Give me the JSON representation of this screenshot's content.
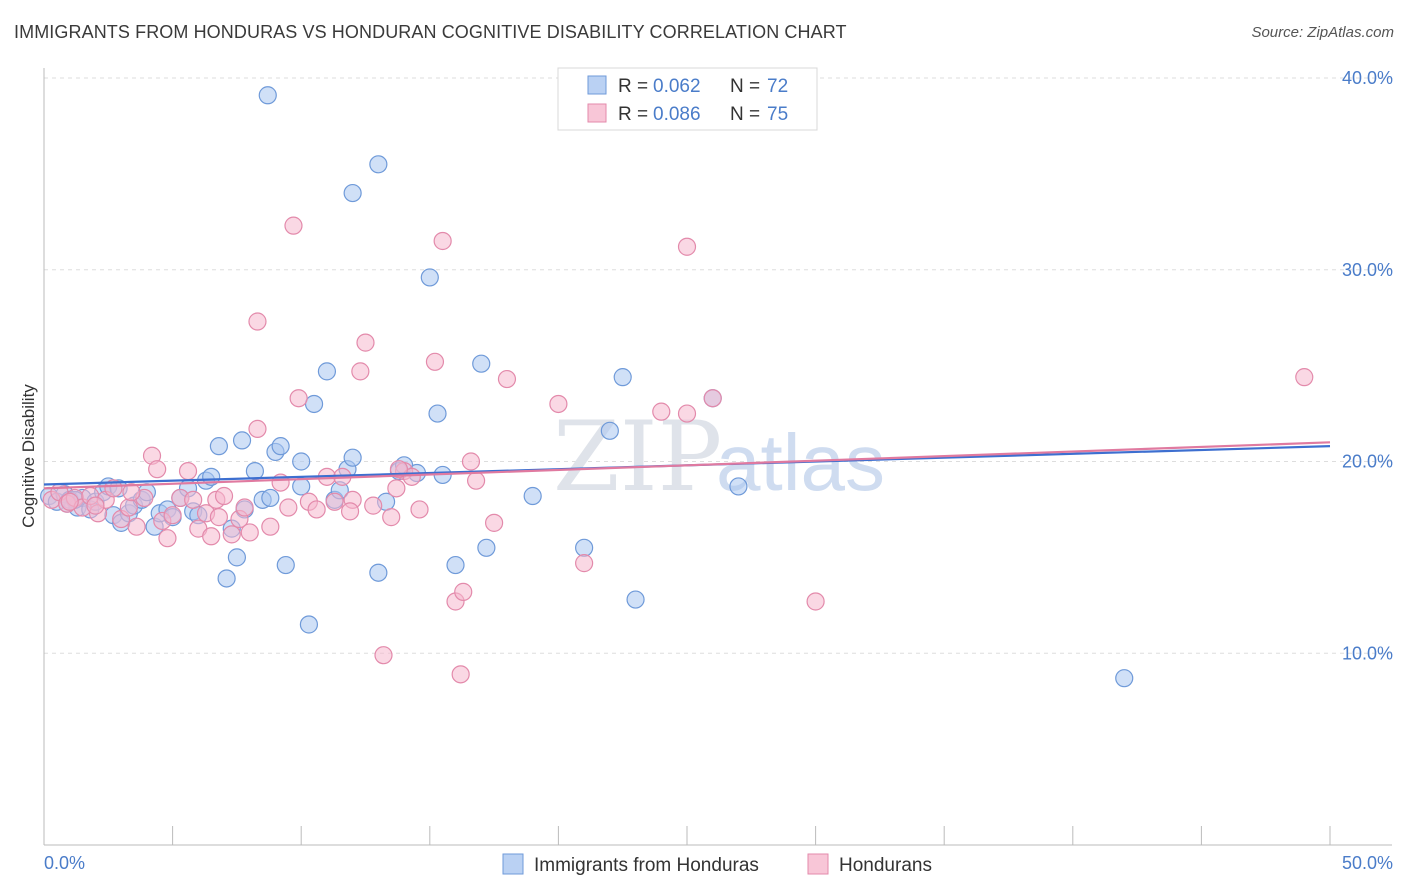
{
  "title": "IMMIGRANTS FROM HONDURAS VS HONDURAN COGNITIVE DISABILITY CORRELATION CHART",
  "source": "Source: ZipAtlas.com",
  "watermark": {
    "part1": "ZIP",
    "part2": "atlas"
  },
  "legend_top": [
    {
      "r_label": "R =",
      "r_value": "0.062",
      "n_label": "N =",
      "n_value": "72",
      "color": "#a9c6f0"
    },
    {
      "r_label": "R =",
      "r_value": "0.086",
      "n_label": "N =",
      "n_value": "75",
      "color": "#f6b8cd"
    }
  ],
  "colors": {
    "blue_fill": "#a9c6f0",
    "blue_stroke": "#6f9ad9",
    "blue_line": "#3d6fd0",
    "pink_fill": "#f6b8cd",
    "pink_stroke": "#e38aab",
    "pink_line": "#e07aa0",
    "tick_text": "#4a7cc9",
    "grid": "#dddddd"
  },
  "chart_data": {
    "type": "scatter",
    "title": "IMMIGRANTS FROM HONDURAS VS HONDURAN COGNITIVE DISABILITY CORRELATION CHART",
    "xlabel": "",
    "ylabel": "Cognitive Disability",
    "xlim": [
      0,
      50
    ],
    "ylim": [
      0,
      40
    ],
    "x_tick_labels": [
      "0.0%",
      "50.0%"
    ],
    "y_ticks": [
      10,
      20,
      30,
      40
    ],
    "y_tick_labels": [
      "10.0%",
      "20.0%",
      "30.0%",
      "40.0%"
    ],
    "grid": true,
    "legend_placement": "top-center",
    "series": [
      {
        "name": "Immigrants from Honduras",
        "trend": [
          [
            0,
            18.8
          ],
          [
            50,
            20.8
          ]
        ],
        "points": [
          [
            0.2,
            18.2
          ],
          [
            0.5,
            17.9
          ],
          [
            0.8,
            18.3
          ],
          [
            1.0,
            18.0
          ],
          [
            1.3,
            17.6
          ],
          [
            1.5,
            18.1
          ],
          [
            1.8,
            17.5
          ],
          [
            2.0,
            17.9
          ],
          [
            2.3,
            18.4
          ],
          [
            2.5,
            18.7
          ],
          [
            2.7,
            17.2
          ],
          [
            3.0,
            16.8
          ],
          [
            3.3,
            17.3
          ],
          [
            3.5,
            17.7
          ],
          [
            3.8,
            18.0
          ],
          [
            4.0,
            18.4
          ],
          [
            4.3,
            16.6
          ],
          [
            4.5,
            17.3
          ],
          [
            4.8,
            17.5
          ],
          [
            5.0,
            17.1
          ],
          [
            5.3,
            18.1
          ],
          [
            5.6,
            18.6
          ],
          [
            5.8,
            17.4
          ],
          [
            6.0,
            17.2
          ],
          [
            6.3,
            19.0
          ],
          [
            6.5,
            19.2
          ],
          [
            6.8,
            20.8
          ],
          [
            7.1,
            13.9
          ],
          [
            7.3,
            16.5
          ],
          [
            7.5,
            15.0
          ],
          [
            7.7,
            21.1
          ],
          [
            7.8,
            17.5
          ],
          [
            8.2,
            19.5
          ],
          [
            8.5,
            18.0
          ],
          [
            8.8,
            18.1
          ],
          [
            9.0,
            20.5
          ],
          [
            9.2,
            20.8
          ],
          [
            9.4,
            14.6
          ],
          [
            10.0,
            18.7
          ],
          [
            10.0,
            20.0
          ],
          [
            10.3,
            11.5
          ],
          [
            10.5,
            23.0
          ],
          [
            11.0,
            24.7
          ],
          [
            11.3,
            18.0
          ],
          [
            11.5,
            18.5
          ],
          [
            11.8,
            19.6
          ],
          [
            12.0,
            20.2
          ],
          [
            12.0,
            34.0
          ],
          [
            13.0,
            35.5
          ],
          [
            13.0,
            14.2
          ],
          [
            13.3,
            17.9
          ],
          [
            13.8,
            19.5
          ],
          [
            14.0,
            19.8
          ],
          [
            14.5,
            19.4
          ],
          [
            15.0,
            29.6
          ],
          [
            15.3,
            22.5
          ],
          [
            15.5,
            19.3
          ],
          [
            16.0,
            14.6
          ],
          [
            17.0,
            25.1
          ],
          [
            17.2,
            15.5
          ],
          [
            19.0,
            18.2
          ],
          [
            21.0,
            15.5
          ],
          [
            22.0,
            21.6
          ],
          [
            22.5,
            24.4
          ],
          [
            23.0,
            12.8
          ],
          [
            26.0,
            23.3
          ],
          [
            27.0,
            18.7
          ],
          [
            42.0,
            8.7
          ],
          [
            8.7,
            39.1
          ],
          [
            1.2,
            18.0
          ],
          [
            0.9,
            17.8
          ],
          [
            2.9,
            18.6
          ]
        ]
      },
      {
        "name": "Hondurans",
        "trend": [
          [
            0,
            18.6
          ],
          [
            50,
            21.0
          ]
        ],
        "points": [
          [
            0.3,
            18.0
          ],
          [
            0.6,
            18.4
          ],
          [
            0.9,
            17.8
          ],
          [
            1.2,
            18.1
          ],
          [
            1.5,
            17.6
          ],
          [
            1.8,
            18.2
          ],
          [
            2.1,
            17.3
          ],
          [
            2.4,
            18.0
          ],
          [
            2.7,
            18.6
          ],
          [
            3.0,
            17.0
          ],
          [
            3.3,
            17.6
          ],
          [
            3.6,
            16.6
          ],
          [
            3.9,
            18.1
          ],
          [
            4.2,
            20.3
          ],
          [
            4.4,
            19.6
          ],
          [
            4.6,
            16.9
          ],
          [
            4.8,
            16.0
          ],
          [
            5.0,
            17.2
          ],
          [
            5.3,
            18.1
          ],
          [
            5.6,
            19.5
          ],
          [
            5.8,
            18.0
          ],
          [
            6.0,
            16.5
          ],
          [
            6.3,
            17.3
          ],
          [
            6.5,
            16.1
          ],
          [
            6.7,
            18.0
          ],
          [
            7.0,
            18.2
          ],
          [
            7.3,
            16.2
          ],
          [
            7.6,
            17.0
          ],
          [
            7.8,
            17.6
          ],
          [
            8.0,
            16.3
          ],
          [
            8.3,
            21.7
          ],
          [
            8.3,
            27.3
          ],
          [
            8.8,
            16.6
          ],
          [
            9.2,
            18.9
          ],
          [
            9.5,
            17.6
          ],
          [
            9.7,
            32.3
          ],
          [
            9.9,
            23.3
          ],
          [
            10.3,
            17.9
          ],
          [
            10.6,
            17.5
          ],
          [
            11.0,
            19.2
          ],
          [
            11.3,
            17.9
          ],
          [
            11.6,
            19.2
          ],
          [
            12.0,
            18.0
          ],
          [
            12.3,
            24.7
          ],
          [
            12.5,
            26.2
          ],
          [
            12.8,
            17.7
          ],
          [
            13.2,
            9.9
          ],
          [
            13.5,
            17.1
          ],
          [
            13.7,
            18.6
          ],
          [
            14.0,
            19.5
          ],
          [
            14.3,
            19.2
          ],
          [
            14.6,
            17.5
          ],
          [
            15.2,
            25.2
          ],
          [
            15.5,
            31.5
          ],
          [
            16.0,
            12.7
          ],
          [
            16.3,
            13.2
          ],
          [
            16.6,
            20.0
          ],
          [
            16.8,
            19.0
          ],
          [
            16.2,
            8.9
          ],
          [
            17.5,
            16.8
          ],
          [
            18.0,
            24.3
          ],
          [
            20.0,
            23.0
          ],
          [
            21.0,
            14.7
          ],
          [
            24.0,
            22.6
          ],
          [
            25.0,
            22.5
          ],
          [
            25.0,
            31.2
          ],
          [
            26.0,
            23.3
          ],
          [
            30.0,
            12.7
          ],
          [
            49.0,
            24.4
          ],
          [
            13.8,
            19.6
          ],
          [
            2.0,
            17.7
          ],
          [
            3.4,
            18.4
          ],
          [
            1.0,
            17.9
          ],
          [
            6.8,
            17.1
          ],
          [
            11.9,
            17.4
          ]
        ]
      }
    ]
  },
  "bottom_legend": [
    {
      "label": "Immigrants from Honduras"
    },
    {
      "label": "Hondurans"
    }
  ]
}
